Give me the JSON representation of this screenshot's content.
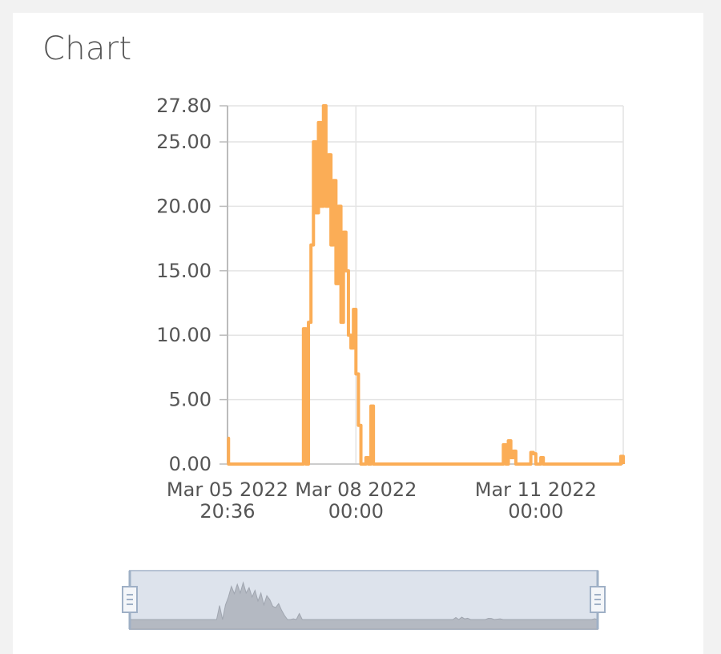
{
  "card": {
    "title": "Chart"
  },
  "chart_data": {
    "type": "line",
    "title": "Chart",
    "xlabel": "",
    "ylabel": "",
    "ylim": [
      0,
      27.8
    ],
    "grid": true,
    "y_ticks": [
      "0.00",
      "5.00",
      "10.00",
      "15.00",
      "20.00",
      "25.00",
      "27.80"
    ],
    "x_ticks": [
      {
        "line1": "Mar 05 2022",
        "line2": "20:36"
      },
      {
        "line1": "Mar 08 2022",
        "line2": "00:00"
      },
      {
        "line1": "Mar 11 2022",
        "line2": "00:00"
      }
    ],
    "series": [
      {
        "color": "#fbad56",
        "x": [
          "2022-03-05 20:36",
          "2022-03-05 21:00",
          "2022-03-07 02:00",
          "2022-03-07 03:00",
          "2022-03-07 04:00",
          "2022-03-07 05:00",
          "2022-03-07 06:00",
          "2022-03-07 07:00",
          "2022-03-07 08:00",
          "2022-03-07 09:00",
          "2022-03-07 10:00",
          "2022-03-07 11:00",
          "2022-03-07 12:00",
          "2022-03-07 13:00",
          "2022-03-07 14:00",
          "2022-03-07 15:00",
          "2022-03-07 16:00",
          "2022-03-07 17:00",
          "2022-03-07 18:00",
          "2022-03-07 19:00",
          "2022-03-07 20:00",
          "2022-03-07 21:00",
          "2022-03-07 22:00",
          "2022-03-07 23:00",
          "2022-03-08 00:00",
          "2022-03-08 01:00",
          "2022-03-08 02:00",
          "2022-03-08 03:00",
          "2022-03-08 04:00",
          "2022-03-08 05:00",
          "2022-03-08 06:00",
          "2022-03-08 07:00",
          "2022-03-08 08:00",
          "2022-03-08 09:00",
          "2022-03-08 10:00",
          "2022-03-08 11:00",
          "2022-03-08 12:00",
          "2022-03-08 13:00",
          "2022-03-08 14:00",
          "2022-03-08 15:00",
          "2022-03-08 16:00",
          "2022-03-08 17:00",
          "2022-03-08 18:00",
          "2022-03-08 19:00",
          "2022-03-08 20:00",
          "2022-03-08 21:00",
          "2022-03-08 22:00",
          "2022-03-10 10:00",
          "2022-03-10 11:00",
          "2022-03-10 12:00",
          "2022-03-10 13:00",
          "2022-03-10 14:00",
          "2022-03-10 15:00",
          "2022-03-10 16:00",
          "2022-03-10 21:00",
          "2022-03-10 22:00",
          "2022-03-10 23:00",
          "2022-03-11 00:00",
          "2022-03-11 02:00",
          "2022-03-11 03:00",
          "2022-03-12 09:00",
          "2022-03-12 10:00",
          "2022-03-12 11:00"
        ],
        "values": [
          2.0,
          0.0,
          0.0,
          10.5,
          0.0,
          11.0,
          17.0,
          25.0,
          19.5,
          26.5,
          20.0,
          27.8,
          20.0,
          24.0,
          17.0,
          22.0,
          14.0,
          20.0,
          11.0,
          18.0,
          15.0,
          10.0,
          9.0,
          12.0,
          7.0,
          3.0,
          0.0,
          0.0,
          0.5,
          0.0,
          4.5,
          0.0,
          0.0,
          0.0,
          0.0,
          0.0,
          0.0,
          0.0,
          0.0,
          0.0,
          0.0,
          0.0,
          0.0,
          0.0,
          0.0,
          0.0,
          0.0,
          0.0,
          1.5,
          0.0,
          1.8,
          0.5,
          1.0,
          0.0,
          0.0,
          0.9,
          0.8,
          0.0,
          0.5,
          0.0,
          0.0,
          0.6,
          0.0
        ]
      }
    ]
  },
  "navigator": {
    "handle_left_icon": "drag-handle-icon",
    "handle_right_icon": "drag-handle-icon"
  }
}
